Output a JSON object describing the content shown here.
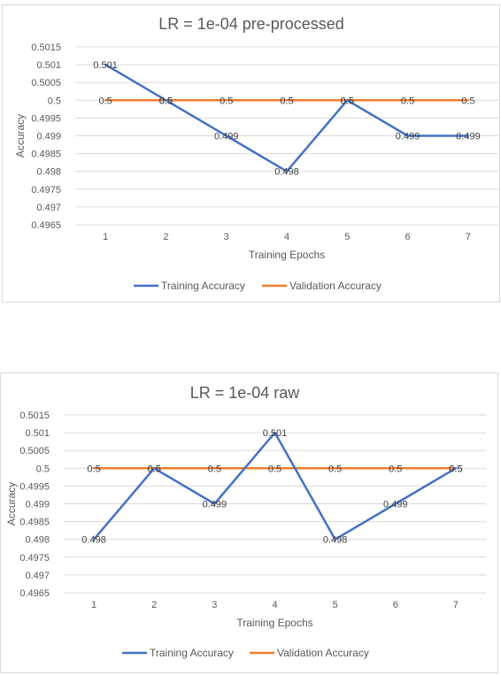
{
  "chart_data": [
    {
      "type": "line",
      "title": "LR = 1e-04 pre-processed",
      "xlabel": "Training Epochs",
      "ylabel": "Accuracy",
      "categories": [
        "1",
        "2",
        "3",
        "4",
        "5",
        "6",
        "7"
      ],
      "ylim": [
        0.4965,
        0.5015
      ],
      "yticks": [
        "0.5015",
        "0.501",
        "0.5005",
        "0.5",
        "0.4995",
        "0.499",
        "0.4985",
        "0.498",
        "0.4975",
        "0.497",
        "0.4965"
      ],
      "grid": true,
      "legend_position": "bottom",
      "series": [
        {
          "name": "Training Accuracy",
          "color": "#4472c4",
          "values": [
            0.501,
            0.5,
            0.499,
            0.498,
            0.5,
            0.499,
            0.499
          ],
          "labels": [
            "0.501",
            "0.5",
            "0.499",
            "0.498",
            "0.5",
            "0.499",
            "0.499"
          ]
        },
        {
          "name": "Validation Accuracy",
          "color": "#ed7d31",
          "values": [
            0.5,
            0.5,
            0.5,
            0.5,
            0.5,
            0.5,
            0.5
          ],
          "labels": [
            "0.5",
            "0.5",
            "0.5",
            "0.5",
            "0.5",
            "0.5",
            "0.5"
          ]
        }
      ]
    },
    {
      "type": "line",
      "title": "LR = 1e-04 raw",
      "xlabel": "Training Epochs",
      "ylabel": "Accuracy",
      "categories": [
        "1",
        "2",
        "3",
        "4",
        "5",
        "6",
        "7"
      ],
      "ylim": [
        0.4965,
        0.5015
      ],
      "yticks": [
        "0.5015",
        "0.501",
        "0.5005",
        "0.5",
        "0.4995",
        "0.499",
        "0.4985",
        "0.498",
        "0.4975",
        "0.497",
        "0.4965"
      ],
      "grid": true,
      "legend_position": "bottom",
      "series": [
        {
          "name": "Training Accuracy",
          "color": "#4472c4",
          "values": [
            0.498,
            0.5,
            0.499,
            0.501,
            0.498,
            0.499,
            0.5
          ],
          "labels": [
            "0.498",
            "0.5",
            "0.499",
            "0.501",
            "0.498",
            "0.499",
            "0.5"
          ]
        },
        {
          "name": "Validation Accuracy",
          "color": "#ed7d31",
          "values": [
            0.5,
            0.5,
            0.5,
            0.5,
            0.5,
            0.5,
            0.5
          ],
          "labels": [
            "0.5",
            "0.5",
            "0.5",
            "0.5",
            "0.5",
            "0.5",
            "0.5"
          ]
        }
      ]
    }
  ]
}
